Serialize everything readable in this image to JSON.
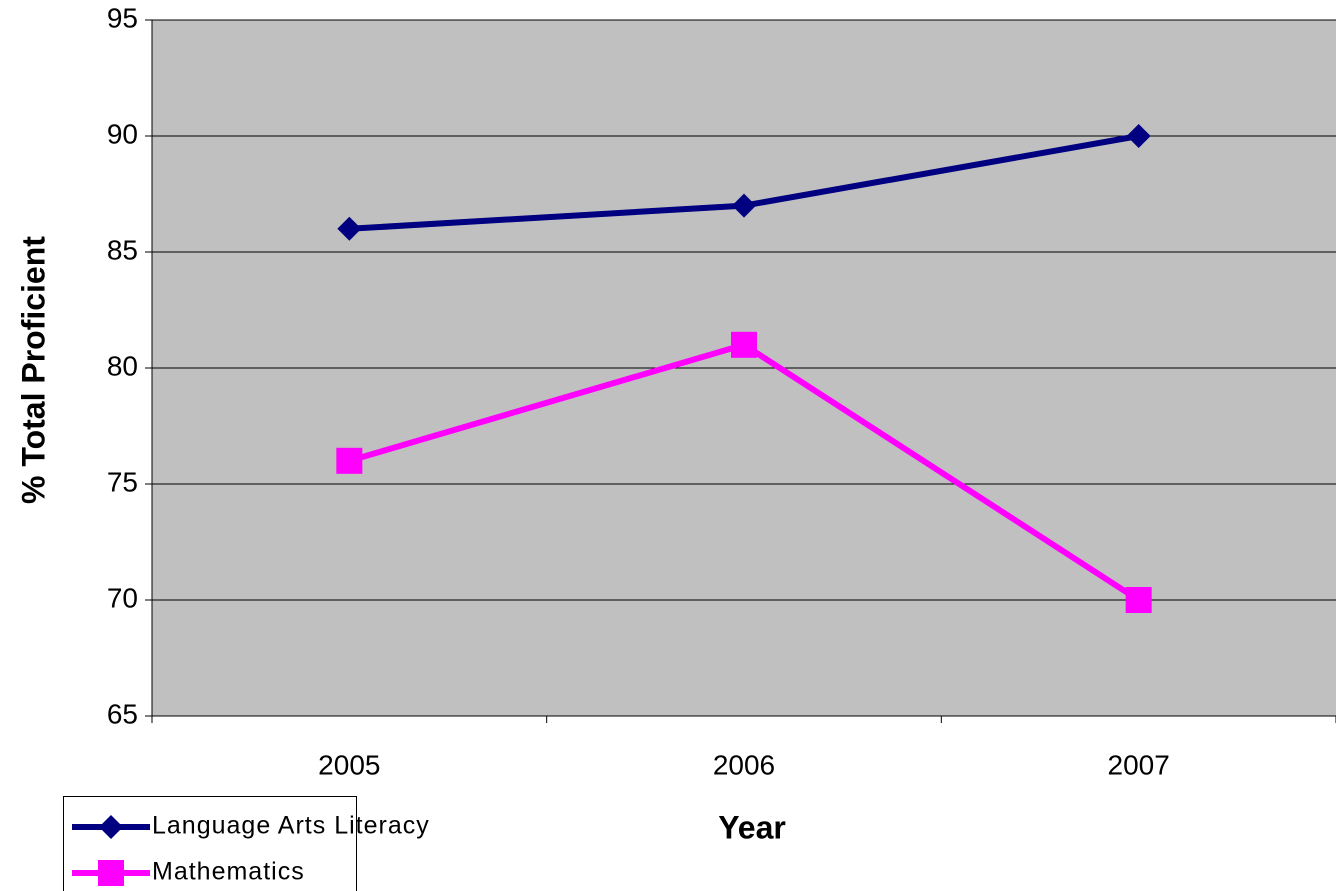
{
  "chart_data": {
    "type": "line",
    "x_label": "Year",
    "y_label": "% Total Proficient",
    "categories": [
      "2005",
      "2006",
      "2007"
    ],
    "series": [
      {
        "name": "Language Arts Literacy",
        "color": "#000080",
        "marker": "diamond",
        "values": [
          86,
          87,
          90
        ]
      },
      {
        "name": "Mathematics",
        "color": "#ff00ff",
        "marker": "square",
        "values": [
          76,
          81,
          70
        ]
      }
    ],
    "ylim": [
      65,
      95
    ],
    "yticks": [
      65,
      70,
      75,
      80,
      85,
      90,
      95
    ],
    "grid": true,
    "plot_background": "#c0c0c0",
    "legend": "bottom-left"
  }
}
